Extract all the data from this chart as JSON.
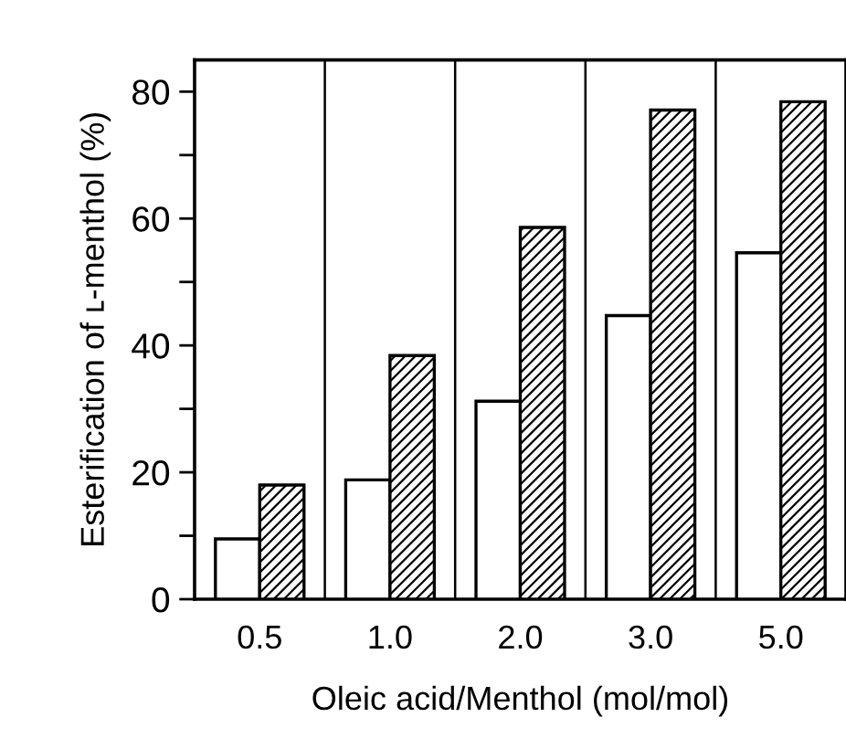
{
  "chart_data": {
    "type": "bar",
    "xlabel": "Oleic acid/Menthol (mol/mol)",
    "ylabel": "Esterification of ʟ-menthol (%)",
    "categories": [
      "0.5",
      "1.0",
      "2.0",
      "3.0",
      "5.0"
    ],
    "series": [
      {
        "color": "#ffffff",
        "values": [
          9.5,
          18.8,
          31.2,
          44.7,
          54.6
        ]
      },
      {
        "color": "#000000",
        "values": [
          18.0,
          38.4,
          58.6,
          77.1,
          78.4
        ]
      }
    ],
    "ylim": [
      0,
      85
    ],
    "yticks": [
      0,
      {
        "value": 10,
        "label": null
      },
      20,
      {
        "value": 30,
        "label": null
      },
      40,
      {
        "value": 50,
        "label": null
      },
      60,
      {
        "value": 70,
        "label": null
      },
      80
    ],
    "grid": "x"
  }
}
